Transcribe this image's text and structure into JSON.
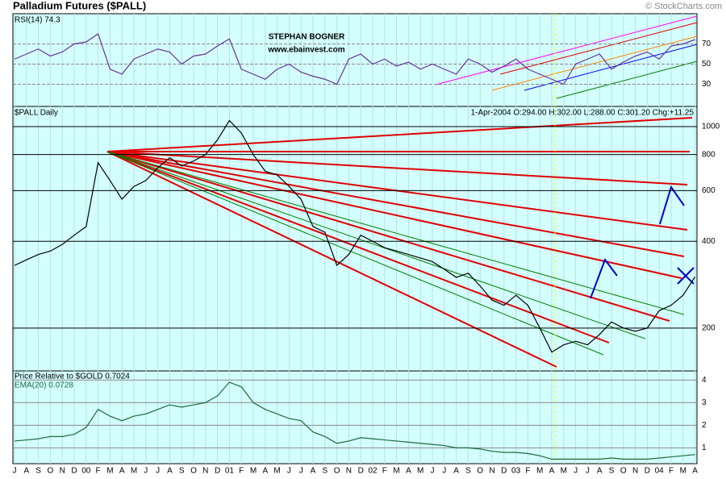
{
  "header": {
    "title": "Palladium Futures ($PALL)",
    "copyright": "© StockCharts.com"
  },
  "chart_data": [
    {
      "type": "line",
      "title": "RSI(14) 74.3",
      "annotations": [
        "STEPHAN BOGNER",
        "www.ebainvest.com"
      ],
      "color": "#663399",
      "ylim": [
        8,
        100
      ],
      "yticks": [
        70,
        50,
        30
      ],
      "values": [
        55,
        60,
        65,
        58,
        62,
        70,
        72,
        80,
        45,
        40,
        55,
        60,
        65,
        62,
        50,
        58,
        60,
        68,
        75,
        45,
        40,
        35,
        45,
        50,
        42,
        38,
        35,
        30,
        55,
        60,
        50,
        55,
        48,
        52,
        45,
        50,
        45,
        40,
        55,
        50,
        42,
        48,
        55,
        45,
        40,
        35,
        30,
        50,
        55,
        60,
        45,
        52,
        58,
        62,
        55,
        68,
        70,
        74.3
      ]
    },
    {
      "type": "line",
      "title": "$PALL Daily",
      "subtitle": "1-Apr-2004 O:294.00 H:302.00 L:288.00 C:301.20 Chg:+11.25",
      "color": "#000000",
      "log": true,
      "ylim": [
        142,
        1175
      ],
      "yticks": [
        1000,
        800,
        600,
        400,
        200
      ],
      "values": [
        330,
        345,
        360,
        370,
        390,
        420,
        450,
        750,
        650,
        560,
        620,
        650,
        720,
        780,
        730,
        760,
        800,
        900,
        1050,
        950,
        800,
        700,
        680,
        620,
        560,
        450,
        430,
        330,
        360,
        420,
        400,
        380,
        370,
        360,
        350,
        340,
        320,
        300,
        310,
        280,
        250,
        240,
        260,
        240,
        200,
        165,
        175,
        180,
        175,
        190,
        210,
        200,
        195,
        200,
        230,
        240,
        260,
        301.2
      ]
    },
    {
      "type": "line",
      "title": "Price Relative to $GOLD 0.7024",
      "subtitle": "EMA(20) 0.0728",
      "color": "#1a6b3a",
      "ylim": [
        0.3,
        4.4
      ],
      "yticks": [
        4,
        3,
        2,
        1
      ],
      "categories": [
        "J",
        "A",
        "S",
        "O",
        "N",
        "D",
        "00",
        "F",
        "M",
        "A",
        "M",
        "J",
        "J",
        "A",
        "S",
        "O",
        "N",
        "D",
        "01",
        "F",
        "M",
        "A",
        "M",
        "J",
        "J",
        "A",
        "S",
        "O",
        "N",
        "D",
        "02",
        "F",
        "M",
        "A",
        "M",
        "J",
        "J",
        "A",
        "S",
        "O",
        "N",
        "D",
        "03",
        "F",
        "M",
        "A",
        "M",
        "J",
        "J",
        "A",
        "S",
        "O",
        "N",
        "D",
        "04",
        "F",
        "M",
        "A"
      ],
      "values": [
        1.3,
        1.35,
        1.4,
        1.5,
        1.5,
        1.6,
        1.9,
        2.7,
        2.4,
        2.2,
        2.4,
        2.5,
        2.7,
        2.9,
        2.8,
        2.9,
        3.0,
        3.3,
        3.9,
        3.7,
        3.0,
        2.7,
        2.5,
        2.3,
        2.2,
        1.7,
        1.5,
        1.2,
        1.3,
        1.45,
        1.4,
        1.35,
        1.3,
        1.25,
        1.2,
        1.15,
        1.1,
        1.0,
        1.0,
        0.95,
        0.85,
        0.8,
        0.8,
        0.75,
        0.65,
        0.5,
        0.5,
        0.5,
        0.5,
        0.5,
        0.55,
        0.5,
        0.5,
        0.5,
        0.55,
        0.6,
        0.65,
        0.7024
      ]
    }
  ]
}
